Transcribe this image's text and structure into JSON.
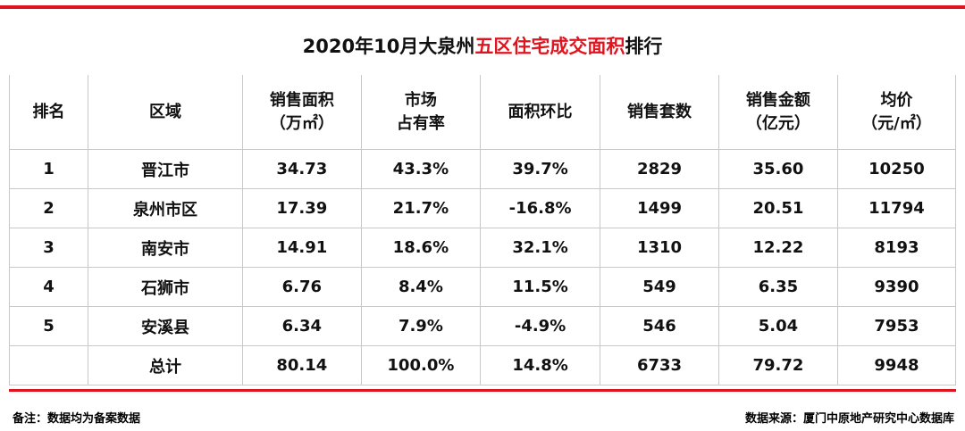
{
  "header": {
    "title": [
      "2020年10月大泉州",
      "五区住宅成交面积",
      "排行"
    ]
  },
  "table": {
    "columns": [
      [
        "排名"
      ],
      [
        "区域"
      ],
      [
        "销售面积",
        "（万㎡）"
      ],
      [
        "市场",
        "占有率"
      ],
      [
        "面积环比"
      ],
      [
        "销售套数"
      ],
      [
        "销售金额",
        "（亿元）"
      ],
      [
        "均价",
        "（元/㎡）"
      ]
    ],
    "rows": [
      [
        "1",
        "晋江市",
        "34.73",
        "43.3%",
        "39.7%",
        "2829",
        "35.60",
        "10250"
      ],
      [
        "2",
        "泉州市区",
        "17.39",
        "21.7%",
        "-16.8%",
        "1499",
        "20.51",
        "11794"
      ],
      [
        "3",
        "南安市",
        "14.91",
        "18.6%",
        "32.1%",
        "1310",
        "12.22",
        "8193"
      ],
      [
        "4",
        "石狮市",
        "6.76",
        "8.4%",
        "11.5%",
        "549",
        "6.35",
        "9390"
      ],
      [
        "5",
        "安溪县",
        "6.34",
        "7.9%",
        "-4.9%",
        "546",
        "5.04",
        "7953"
      ],
      [
        "",
        "总计",
        "80.14",
        "100.0%",
        "14.8%",
        "6733",
        "79.72",
        "9948"
      ]
    ]
  },
  "footer": {
    "note": "备注：数据均为备案数据",
    "source": "数据来源：厦门中原地产研究中心数据库"
  }
}
